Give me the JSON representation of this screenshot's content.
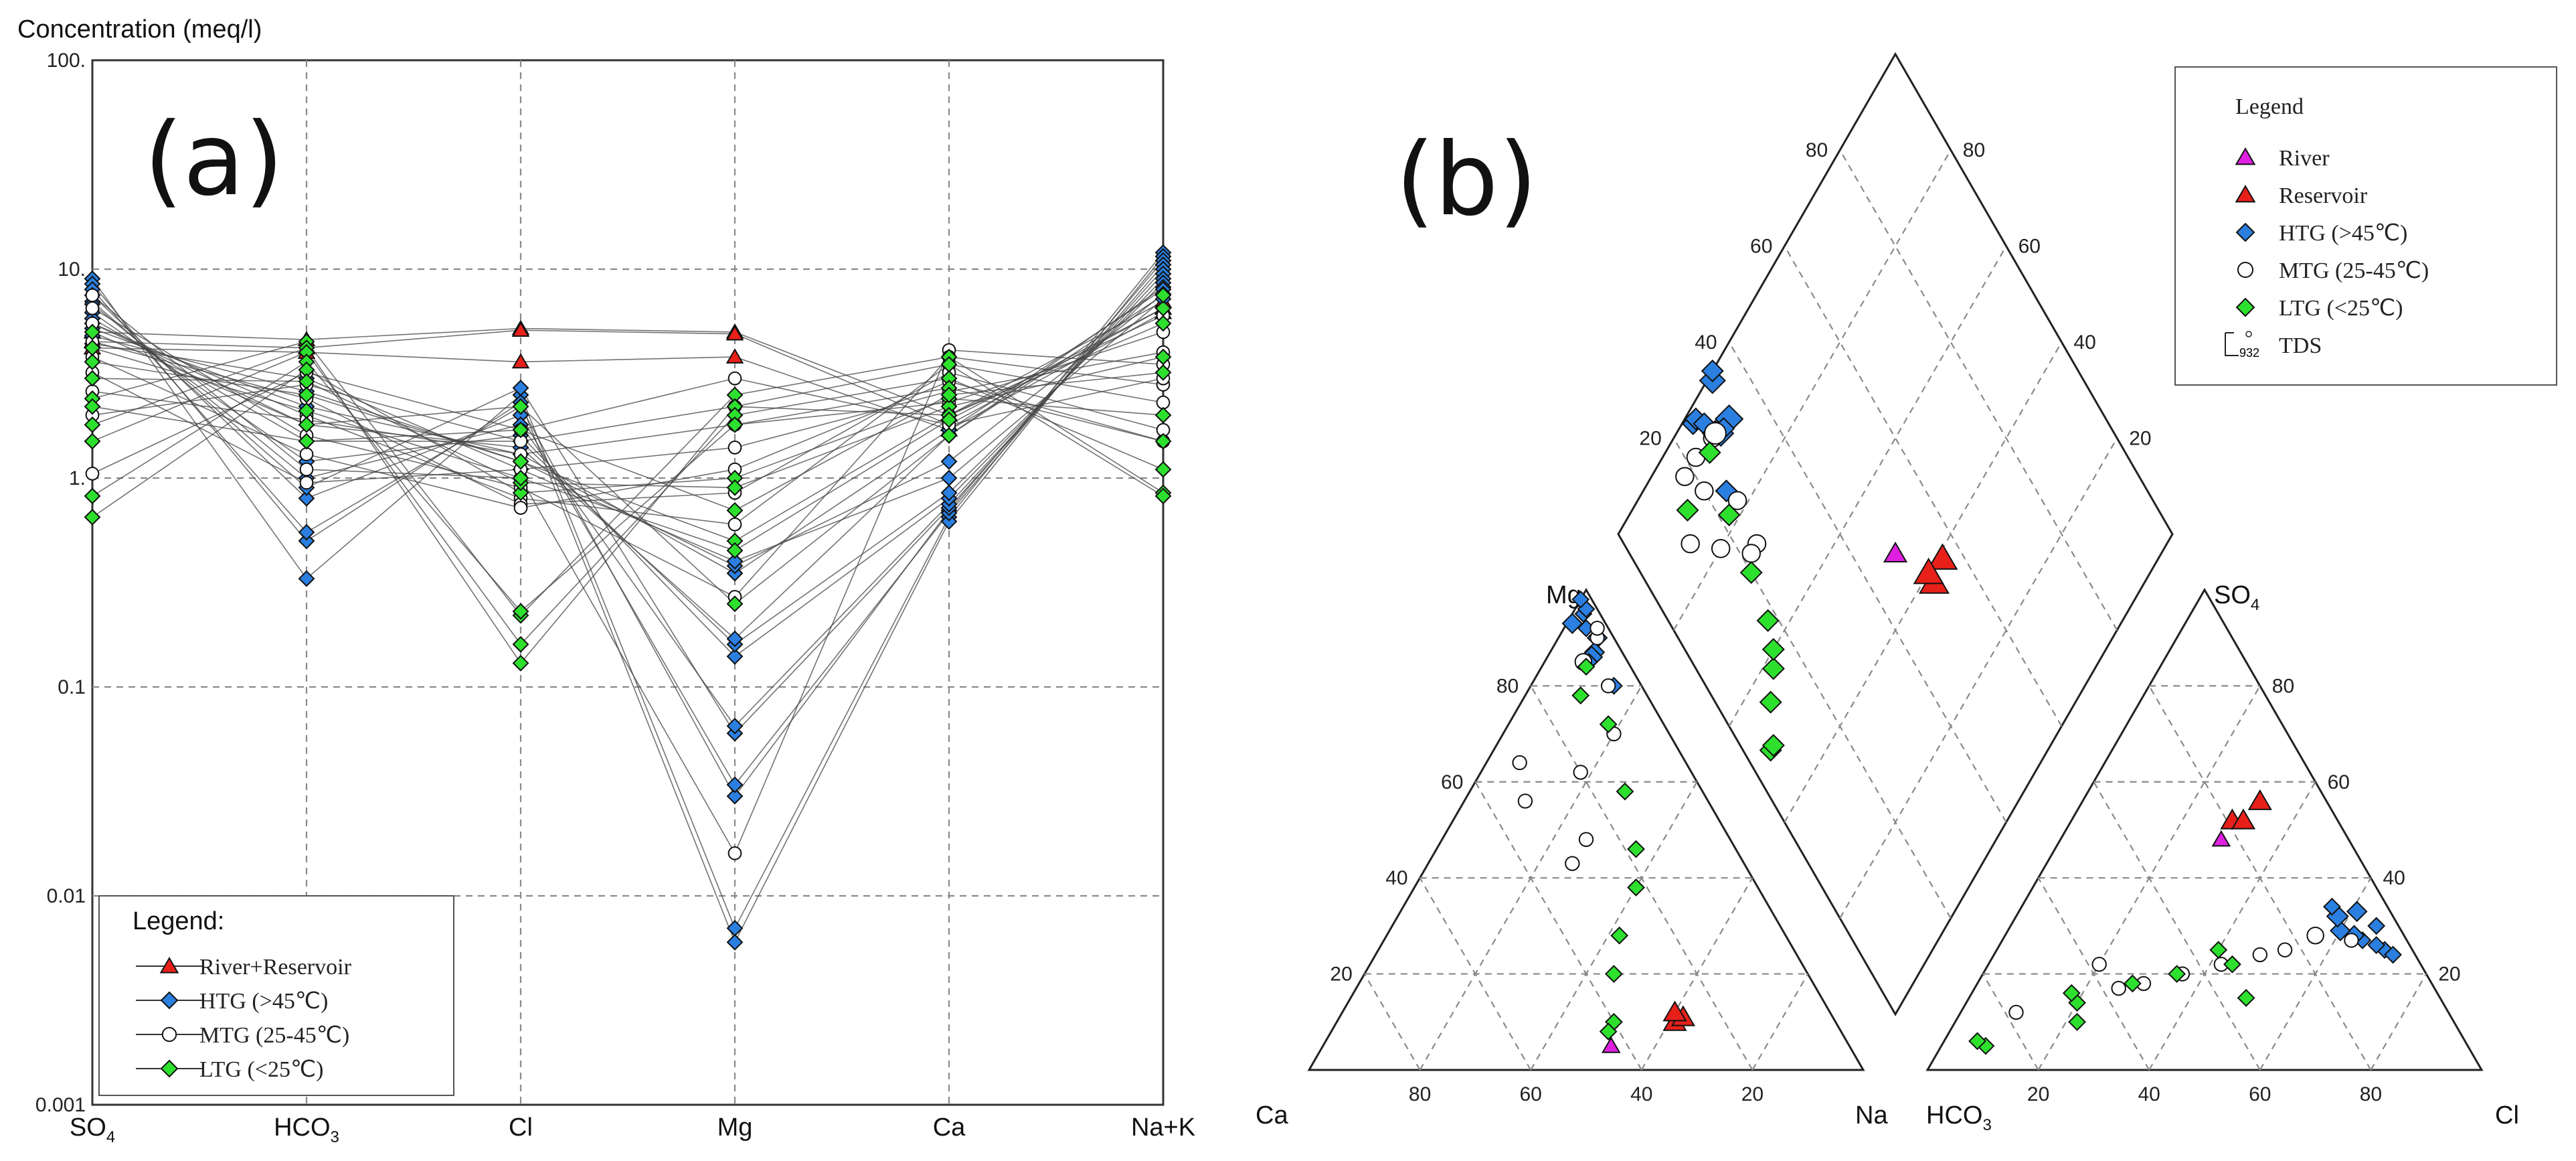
{
  "chart_data": [
    {
      "panel_label": "(a)",
      "type": "line",
      "chart_kind": "Schoeller diagram",
      "ylabel": "Concentration (meq/l)",
      "yscale": "log",
      "ylim": [
        0.001,
        100
      ],
      "ytick_labels": [
        "100.",
        "10.",
        "1.",
        "0.1",
        "0.01",
        "0.001"
      ],
      "grid": true,
      "categories": [
        "SO4",
        "HCO3",
        "Cl",
        "Mg",
        "Ca",
        "Na+K"
      ],
      "category_labels": [
        {
          "main": "SO",
          "sub": "4"
        },
        {
          "main": "HCO",
          "sub": "3"
        },
        {
          "main": "Cl",
          "sub": ""
        },
        {
          "main": "Mg",
          "sub": ""
        },
        {
          "main": "Ca",
          "sub": ""
        },
        {
          "main": "Na+K",
          "sub": ""
        }
      ],
      "legend": {
        "title": "Legend:",
        "location": "bottom-left",
        "entries": [
          {
            "label": "River+Reservoir",
            "marker": "triangle",
            "color": "#e8201a"
          },
          {
            "label": "HTG (>45℃)",
            "marker": "diamond",
            "color": "#2b7fe0"
          },
          {
            "label": "MTG (25-45℃)",
            "marker": "circle",
            "color": "#ffffff"
          },
          {
            "label": "LTG (<25℃)",
            "marker": "diamond",
            "color": "#2ee02e"
          }
        ]
      },
      "series": [
        {
          "name": "River+Reservoir",
          "values": [
            5.0,
            4.6,
            5.2,
            5.0,
            2.0,
            7.0
          ]
        },
        {
          "name": "River+Reservoir",
          "values": [
            4.5,
            4.2,
            5.1,
            4.9,
            1.8,
            6.5
          ]
        },
        {
          "name": "River+Reservoir",
          "values": [
            4.2,
            4.0,
            3.6,
            3.8,
            1.7,
            6.2
          ]
        },
        {
          "name": "HTG (>45℃)",
          "values": [
            9.0,
            0.33,
            2.5,
            0.007,
            0.65,
            12.0
          ]
        },
        {
          "name": "HTG (>45℃)",
          "values": [
            8.5,
            0.5,
            2.3,
            0.006,
            0.62,
            11.5
          ]
        },
        {
          "name": "HTG (>45℃)",
          "values": [
            8.0,
            0.55,
            2.2,
            0.03,
            0.7,
            11.0
          ]
        },
        {
          "name": "HTG (>45℃)",
          "values": [
            7.5,
            0.8,
            2.0,
            0.034,
            0.68,
            10.5
          ]
        },
        {
          "name": "HTG (>45℃)",
          "values": [
            7.0,
            0.9,
            2.7,
            0.06,
            0.72,
            10.0
          ]
        },
        {
          "name": "HTG (>45℃)",
          "values": [
            6.8,
            1.0,
            1.8,
            0.065,
            0.75,
            9.5
          ]
        },
        {
          "name": "HTG (>45℃)",
          "values": [
            6.2,
            1.2,
            1.6,
            0.14,
            0.8,
            9.0
          ]
        },
        {
          "name": "HTG (>45℃)",
          "values": [
            5.8,
            1.5,
            1.5,
            0.16,
            0.85,
            8.6
          ]
        },
        {
          "name": "HTG (>45℃)",
          "values": [
            5.5,
            1.8,
            1.4,
            0.17,
            1.6,
            8.2
          ]
        },
        {
          "name": "HTG (>45℃)",
          "values": [
            5.2,
            2.2,
            1.3,
            0.35,
            1.7,
            8.0
          ]
        },
        {
          "name": "HTG (>45℃)",
          "values": [
            4.8,
            2.6,
            1.2,
            0.38,
            1.2,
            7.6
          ]
        },
        {
          "name": "HTG (>45℃)",
          "values": [
            4.4,
            3.0,
            1.1,
            0.4,
            1.0,
            7.2
          ]
        },
        {
          "name": "MTG (25-45℃)",
          "values": [
            7.5,
            1.1,
            1.0,
            0.016,
            4.1,
            3.5
          ]
        },
        {
          "name": "MTG (25-45℃)",
          "values": [
            6.5,
            1.6,
            0.9,
            0.27,
            3.8,
            2.8
          ]
        },
        {
          "name": "MTG (25-45℃)",
          "values": [
            5.5,
            2.0,
            0.8,
            0.6,
            3.5,
            2.3
          ]
        },
        {
          "name": "MTG (25-45℃)",
          "values": [
            4.5,
            2.4,
            0.75,
            0.85,
            3.2,
            1.7
          ]
        },
        {
          "name": "MTG (25-45℃)",
          "values": [
            3.8,
            1.3,
            0.72,
            1.1,
            2.9,
            1.5
          ]
        },
        {
          "name": "MTG (25-45℃)",
          "values": [
            3.2,
            0.95,
            1.1,
            1.4,
            2.6,
            4.0
          ]
        },
        {
          "name": "MTG (25-45℃)",
          "values": [
            2.6,
            1.9,
            1.3,
            1.8,
            2.3,
            5.0
          ]
        },
        {
          "name": "MTG (25-45℃)",
          "values": [
            2.0,
            2.8,
            1.5,
            2.2,
            2.0,
            6.0
          ]
        },
        {
          "name": "MTG (25-45℃)",
          "values": [
            1.05,
            3.2,
            1.7,
            3.0,
            1.8,
            3.0
          ]
        },
        {
          "name": "LTG (<25℃)",
          "values": [
            2.4,
            4.5,
            0.22,
            2.5,
            3.8,
            0.85
          ]
        },
        {
          "name": "LTG (<25℃)",
          "values": [
            1.8,
            4.2,
            0.13,
            2.2,
            3.5,
            0.82
          ]
        },
        {
          "name": "LTG (<25℃)",
          "values": [
            1.5,
            4.0,
            0.16,
            2.0,
            3.0,
            1.1
          ]
        },
        {
          "name": "LTG (<25℃)",
          "values": [
            0.82,
            3.6,
            0.23,
            1.8,
            2.7,
            1.5
          ]
        },
        {
          "name": "LTG (<25℃)",
          "values": [
            0.65,
            3.3,
            0.85,
            1.0,
            2.4,
            2.0
          ]
        },
        {
          "name": "LTG (<25℃)",
          "values": [
            3.0,
            2.9,
            0.95,
            0.9,
            2.2,
            3.8
          ]
        },
        {
          "name": "LTG (<25℃)",
          "values": [
            3.6,
            2.5,
            1.2,
            0.5,
            2.0,
            5.5
          ]
        },
        {
          "name": "LTG (<25℃)",
          "values": [
            4.2,
            2.1,
            1.0,
            0.45,
            1.9,
            6.5
          ]
        },
        {
          "name": "LTG (<25℃)",
          "values": [
            5.0,
            1.8,
            2.2,
            0.25,
            1.6,
            7.5
          ]
        },
        {
          "name": "LTG (<25℃)",
          "values": [
            2.2,
            1.5,
            1.7,
            0.7,
            2.5,
            3.2
          ]
        }
      ]
    },
    {
      "panel_label": "(b)",
      "type": "scatter",
      "chart_kind": "Piper trilinear diagram",
      "cation_axes": {
        "left": "Ca",
        "right": "Na",
        "top": "Mg"
      },
      "anion_axes": {
        "left": "HCO3",
        "right": "Cl",
        "top": "SO4"
      },
      "anion_labels": {
        "left": {
          "main": "HCO",
          "sub": "3"
        },
        "right": {
          "main": "Cl",
          "sub": ""
        },
        "top": {
          "main": "SO",
          "sub": "4"
        }
      },
      "tick_values": [
        "20",
        "40",
        "60",
        "80"
      ],
      "legend": {
        "title": "Legend",
        "location": "top-right",
        "entries": [
          {
            "label": "River",
            "marker": "triangle",
            "color": "#e020e0"
          },
          {
            "label": "Reservoir",
            "marker": "triangle",
            "color": "#e8201a"
          },
          {
            "label": "HTG (>45℃)",
            "marker": "diamond",
            "color": "#2b7fe0"
          },
          {
            "label": "MTG (25-45℃)",
            "marker": "circle",
            "color": "#ffffff"
          },
          {
            "label": "LTG (<25℃)",
            "marker": "diamond",
            "color": "#2ee02e"
          }
        ],
        "size_key": {
          "label": "TDS",
          "value": "932"
        }
      },
      "points": [
        {
          "group": "River",
          "cation": [
            43,
            5
          ],
          "anion": [
            29,
            48
          ],
          "size": 1.0
        },
        {
          "group": "Reservoir",
          "cation": [
            29,
            10
          ],
          "anion": [
            32,
            56
          ],
          "size": 1.3
        },
        {
          "group": "Reservoir",
          "cation": [
            27,
            11
          ],
          "anion": [
            29,
            52
          ],
          "size": 1.3
        },
        {
          "group": "Reservoir",
          "cation": [
            28,
            12
          ],
          "anion": [
            31,
            52
          ],
          "size": 1.3
        },
        {
          "group": "HTG (>45℃)",
          "cation": [
            3,
            95
          ],
          "anion": [
            70,
            25
          ],
          "size": 1.0
        },
        {
          "group": "HTG (>45℃)",
          "cation": [
            2,
            96
          ],
          "anion": [
            68,
            26
          ],
          "size": 1.0
        },
        {
          "group": "HTG (>45℃)",
          "cation": [
            4,
            92
          ],
          "anion": [
            65,
            27
          ],
          "size": 1.0
        },
        {
          "group": "HTG (>45℃)",
          "cation": [
            3,
            90
          ],
          "anion": [
            63,
            28
          ],
          "size": 1.2
        },
        {
          "group": "HTG (>45℃)",
          "cation": [
            5,
            87
          ],
          "anion": [
            60,
            29
          ],
          "size": 1.2
        },
        {
          "group": "HTG (>45℃)",
          "cation": [
            6,
            86
          ],
          "anion": [
            58,
            32
          ],
          "size": 1.3
        },
        {
          "group": "HTG (>45℃)",
          "cation": [
            7,
            85
          ],
          "anion": [
            66,
            30
          ],
          "size": 1.0
        },
        {
          "group": "HTG (>45℃)",
          "cation": [
            5,
            80
          ],
          "anion": [
            72,
            24
          ],
          "size": 1.0
        },
        {
          "group": "HTG (>45℃)",
          "cation": [
            6,
            93
          ],
          "anion": [
            61,
            33
          ],
          "size": 1.2
        },
        {
          "group": "HTG (>45℃)",
          "cation": [
            2,
            98
          ],
          "anion": [
            56,
            34
          ],
          "size": 1.0
        },
        {
          "group": "MTG (25-45℃)",
          "cation": [
            3,
            90
          ],
          "anion": [
            63,
            27
          ],
          "size": 1.0
        },
        {
          "group": "MTG (25-45℃)",
          "cation": [
            8,
            85
          ],
          "anion": [
            56,
            28
          ],
          "size": 1.2
        },
        {
          "group": "MTG (25-45℃)",
          "cation": [
            20,
            62
          ],
          "anion": [
            52,
            25
          ],
          "size": 1.0
        },
        {
          "group": "MTG (25-45℃)",
          "cation": [
            26,
            48
          ],
          "anion": [
            48,
            24
          ],
          "size": 1.0
        },
        {
          "group": "MTG (25-45℃)",
          "cation": [
            31,
            43
          ],
          "anion": [
            42,
            22
          ],
          "size": 1.0
        },
        {
          "group": "MTG (25-45℃)",
          "cation": [
            33,
            56
          ],
          "anion": [
            36,
            20
          ],
          "size": 1.0
        },
        {
          "group": "MTG (25-45℃)",
          "cation": [
            30,
            64
          ],
          "anion": [
            30,
            18
          ],
          "size": 1.0
        },
        {
          "group": "MTG (25-45℃)",
          "cation": [
            10,
            70
          ],
          "anion": [
            26,
            17
          ],
          "size": 1.0
        },
        {
          "group": "MTG (25-45℃)",
          "cation": [
            6,
            80
          ],
          "anion": [
            10,
            12
          ],
          "size": 1.0
        },
        {
          "group": "MTG (25-45℃)",
          "cation": [
            2,
            92
          ],
          "anion": [
            20,
            22
          ],
          "size": 1.0
        },
        {
          "group": "LTG (<25℃)",
          "cation": [
            40,
            10
          ],
          "anion": [
            8,
            5
          ],
          "size": 1.0
        },
        {
          "group": "LTG (<25℃)",
          "cation": [
            42,
            8
          ],
          "anion": [
            6,
            6
          ],
          "size": 1.0
        },
        {
          "group": "LTG (<25℃)",
          "cation": [
            35,
            20
          ],
          "anion": [
            22,
            10
          ],
          "size": 1.0
        },
        {
          "group": "LTG (<25℃)",
          "cation": [
            30,
            28
          ],
          "anion": [
            20,
            14
          ],
          "size": 1.0
        },
        {
          "group": "LTG (<25℃)",
          "cation": [
            22,
            38
          ],
          "anion": [
            18,
            16
          ],
          "size": 1.0
        },
        {
          "group": "LTG (<25℃)",
          "cation": [
            18,
            46
          ],
          "anion": [
            28,
            18
          ],
          "size": 1.0
        },
        {
          "group": "LTG (<25℃)",
          "cation": [
            14,
            58
          ],
          "anion": [
            35,
            20
          ],
          "size": 1.0
        },
        {
          "group": "LTG (<25℃)",
          "cation": [
            10,
            72
          ],
          "anion": [
            44,
            22
          ],
          "size": 1.0
        },
        {
          "group": "LTG (<25℃)",
          "cation": [
            12,
            78
          ],
          "anion": [
            50,
            15
          ],
          "size": 1.0
        },
        {
          "group": "LTG (<25℃)",
          "cation": [
            8,
            84
          ],
          "anion": [
            40,
            25
          ],
          "size": 1.0
        }
      ]
    }
  ]
}
